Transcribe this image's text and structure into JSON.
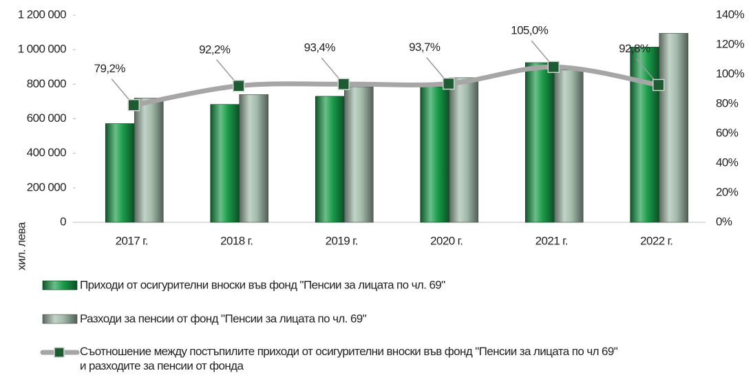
{
  "chart_data": {
    "type": "bar-line",
    "y_label": "хил. лева",
    "categories": [
      "2017 г.",
      "2018 г.",
      "2019 г.",
      "2020 г.",
      "2021 г.",
      "2022 г."
    ],
    "series": [
      {
        "name": "Приходи от осигурителни вноски във фонд \"Пенсии за лицата по чл. 69\"",
        "type": "bar",
        "color": "#1a9c4a",
        "values": [
          572000,
          683000,
          730000,
          785000,
          925000,
          1015000
        ]
      },
      {
        "name": "Разходи за пенсии от фонд \"Пенсии за лицата по чл. 69\"",
        "type": "bar",
        "color": "#a3bbab",
        "values": [
          720000,
          740000,
          785000,
          838000,
          882000,
          1095000
        ]
      },
      {
        "name": "Съотношение между постъпилите приходи от осигурителни вноски във фонд \"Пенсии за лицата по чл 69\"\nи разходите за пенсии от фонда",
        "type": "line",
        "axis": "y2",
        "color": "#a6a6a6",
        "marker_color": "#1e5a32",
        "values": [
          79.2,
          92.2,
          93.4,
          93.7,
          105.0,
          92.8
        ],
        "value_labels": [
          "79,2%",
          "92,2%",
          "93,4%",
          "93,7%",
          "105,0%",
          "92,8%"
        ]
      }
    ],
    "ylim": [
      0,
      1200000
    ],
    "yticks": [
      0,
      {
        "value": 200000,
        "label": "200 000"
      },
      {
        "value": 400000,
        "label": "400 000"
      },
      {
        "value": 600000,
        "label": "600 000"
      },
      {
        "value": 800000,
        "label": "800 000"
      },
      {
        "value": 1000000,
        "label": "1 000 000"
      },
      {
        "value": 1200000,
        "label": "1 200 000"
      }
    ],
    "y2lim": [
      0,
      140
    ],
    "y2ticks": [
      {
        "value": 0,
        "label": "0%"
      },
      {
        "value": 20,
        "label": "20%"
      },
      {
        "value": 40,
        "label": "40%"
      },
      {
        "value": 60,
        "label": "60%"
      },
      {
        "value": 80,
        "label": "80%"
      },
      {
        "value": 100,
        "label": "100%"
      },
      {
        "value": 120,
        "label": "120%"
      },
      {
        "value": 140,
        "label": "140%"
      }
    ],
    "legend": "bottom"
  }
}
